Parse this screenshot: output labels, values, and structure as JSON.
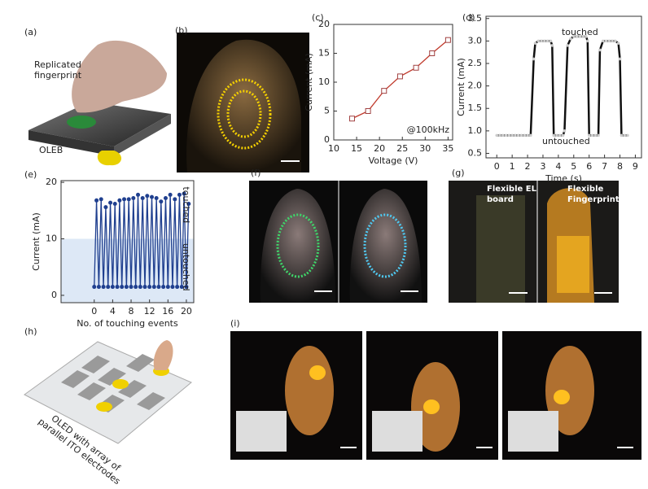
{
  "panel_labels": [
    "(a)",
    "(b)",
    "(c)",
    "(d)",
    "(e)",
    "(f)",
    "(g)",
    "(h)",
    "(i)"
  ],
  "panel_a": {
    "replicated": [
      "Replicated",
      "fingerprint"
    ],
    "oleb": "OLEB"
  },
  "panel_g": {
    "left": [
      "Flexible EL",
      "board"
    ],
    "right": [
      "Flexible",
      "Fingerprint"
    ]
  },
  "panel_h": {
    "caption": [
      "OLED with array of",
      "parallel ITO electrodes"
    ]
  },
  "chart_data": [
    {
      "type": "line",
      "x_label": "Voltage (V)",
      "y_label": "Current (mA)",
      "annotation": "@100kHz",
      "x": [
        14,
        17.5,
        21,
        24.5,
        28,
        31.5,
        35
      ],
      "values": [
        3.7,
        5,
        8.5,
        11,
        12.5,
        15,
        17.3
      ],
      "color": "#c0392b",
      "marker": "square",
      "xlim": [
        10,
        36
      ],
      "ylim": [
        0,
        20
      ],
      "xticks": [
        10,
        15,
        20,
        25,
        30,
        35
      ],
      "yticks": [
        0,
        5,
        10,
        15,
        20
      ]
    },
    {
      "type": "line",
      "x_label": "Time (s)",
      "y_label": "Current (mA)",
      "annotations": [
        "touched",
        "untouched"
      ],
      "x": [
        0,
        0.2,
        0.4,
        0.6,
        0.8,
        1,
        1.2,
        1.4,
        1.6,
        1.8,
        2,
        2.2,
        2.4,
        2.5,
        2.7,
        2.9,
        3.1,
        3.3,
        3.5,
        3.6,
        3.7,
        3.9,
        4.1,
        4.3,
        4.4,
        4.6,
        4.8,
        5,
        5.2,
        5.4,
        5.6,
        5.8,
        5.9,
        6.0,
        6.2,
        6.4,
        6.6,
        6.7,
        6.9,
        7.1,
        7.3,
        7.5,
        7.7,
        7.9,
        8.0,
        8.1,
        8.3,
        8.5
      ],
      "values": [
        0.9,
        0.9,
        0.9,
        0.9,
        0.9,
        0.9,
        0.9,
        0.9,
        0.9,
        0.9,
        0.9,
        0.9,
        2.6,
        2.95,
        3.0,
        3.0,
        3.0,
        3.0,
        3.0,
        2.9,
        0.9,
        0.9,
        0.9,
        0.9,
        1.0,
        2.9,
        3.05,
        3.1,
        3.1,
        3.1,
        3.1,
        3.1,
        3.0,
        0.9,
        0.9,
        0.9,
        0.9,
        2.8,
        3.0,
        3.0,
        3.0,
        3.0,
        3.0,
        2.95,
        2.6,
        0.9,
        0.9,
        0.9
      ],
      "color": "#111111",
      "marker": "circle",
      "xlim": [
        -0.7,
        9.4
      ],
      "ylim": [
        0.4,
        3.55
      ],
      "xticks": [
        0,
        1,
        2,
        3,
        4,
        5,
        6,
        7,
        8,
        9
      ],
      "yticks": [
        0.5,
        {
          "value": 1,
          "label": "1.0"
        },
        1.5,
        {
          "value": 2,
          "label": "2.0"
        },
        2.5,
        {
          "value": 3,
          "label": "3.0"
        },
        3.5
      ]
    },
    {
      "type": "line",
      "x_label": "No. of touching events",
      "y_label": "Current (mA)",
      "side_labels": [
        "touched",
        "untouched"
      ],
      "x": [
        0,
        0.5,
        1,
        1.5,
        2,
        2.5,
        3,
        3.5,
        4,
        4.5,
        5,
        5.5,
        6,
        6.5,
        7,
        7.5,
        8,
        8.5,
        9,
        9.5,
        10,
        10.5,
        11,
        11.5,
        12,
        12.5,
        13,
        13.5,
        14,
        14.5,
        15,
        15.5,
        16,
        16.5,
        17,
        17.5,
        18,
        18.5,
        19,
        19.5,
        20,
        20.5
      ],
      "values": [
        1.5,
        16.8,
        1.5,
        17,
        1.5,
        15.6,
        1.5,
        16.4,
        1.5,
        16.2,
        1.5,
        16.8,
        1.5,
        17,
        1.5,
        17,
        1.5,
        17.2,
        1.5,
        17.8,
        1.5,
        17.2,
        1.5,
        17.6,
        1.5,
        17.4,
        1.5,
        17.2,
        1.5,
        16.6,
        1.5,
        17.2,
        1.5,
        17.8,
        1.5,
        17,
        1.5,
        17.8,
        1.5,
        18,
        1.5,
        16.2
      ],
      "color": "#1f3f8f",
      "marker": "circle",
      "shade_below": 10,
      "xlim": [
        -7.2,
        21.6
      ],
      "ylim": [
        -1.3,
        20.3
      ],
      "xticks": [
        0,
        4,
        8,
        12,
        16,
        20
      ],
      "yticks": [
        0,
        10,
        20
      ]
    }
  ]
}
